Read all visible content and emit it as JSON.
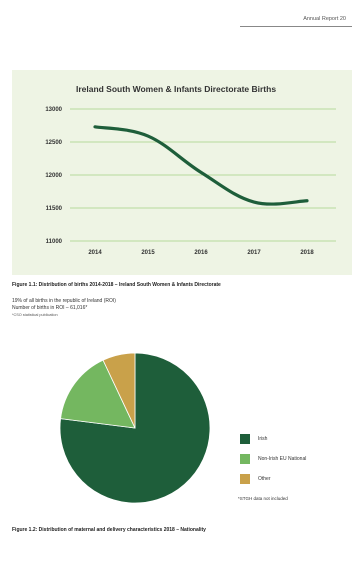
{
  "header": {
    "title": "Annual Report 20"
  },
  "chart_data": [
    {
      "type": "line",
      "title": "Ireland South Women & Infants Directorate Births",
      "categories": [
        "2014",
        "2015",
        "2016",
        "2017",
        "2018"
      ],
      "series": [
        {
          "values": [
            12730,
            12590,
            12040,
            11590,
            11610
          ]
        }
      ],
      "yticks": [
        11000,
        11500,
        12000,
        12500,
        13000
      ],
      "ylim": [
        11000,
        13000
      ],
      "grid": "horizontal",
      "colors": {
        "line": "#1e5e3a",
        "grid": "#7cbf56",
        "panel": "#eef4e4"
      }
    },
    {
      "type": "pie",
      "labels": [
        "Irish",
        "Non-Irish EU National",
        "Other"
      ],
      "values": [
        77,
        16,
        7
      ],
      "colors": [
        "#1e5e3a",
        "#74b760",
        "#c9a14a"
      ],
      "legend": "right"
    }
  ],
  "figure1": {
    "caption": "Figure 1.1: Distribution of births 2014-2018 – Ireland South Women & Infants Directorate"
  },
  "notes": {
    "line1": "19% of all births in the republic of Ireland (ROI)",
    "line2": "Number of births in ROI – 61,016*",
    "source": "*CSO statistical publication"
  },
  "pie_note": "*STGH data not included",
  "figure2": {
    "caption": "Figure 1.2: Distribution of maternal and delivery characteristics 2018 – Nationality"
  }
}
